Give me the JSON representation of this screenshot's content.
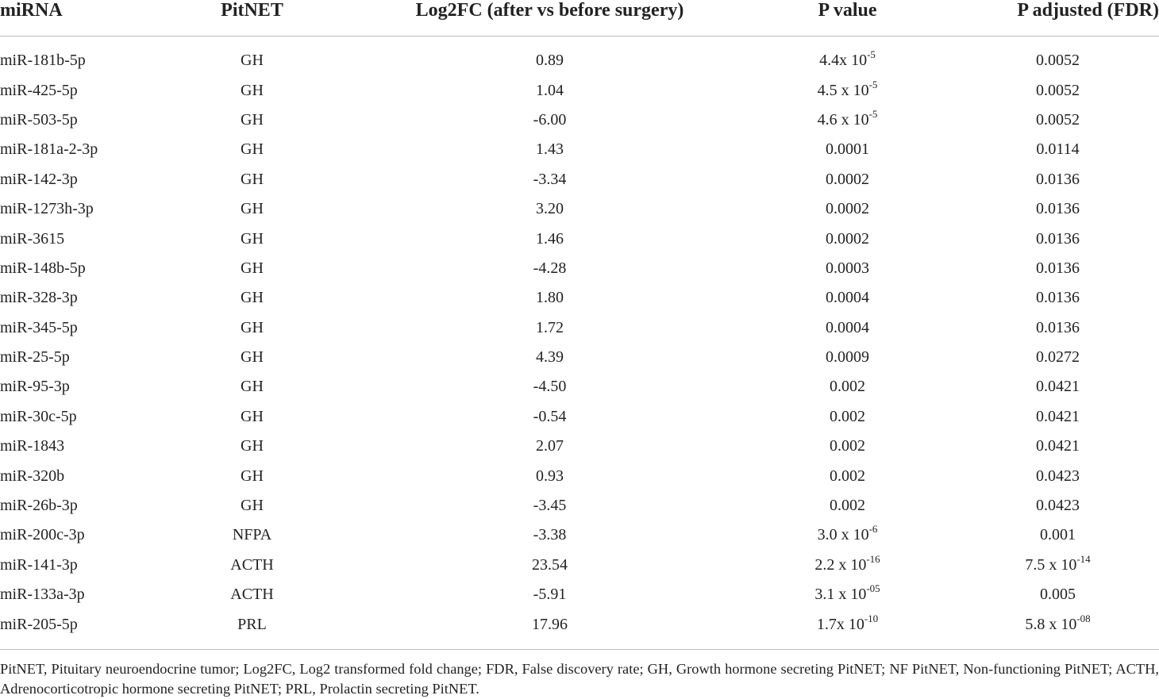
{
  "table": {
    "headers": [
      "miRNA",
      "PitNET",
      "Log2FC (after vs before surgery)",
      "P value",
      "P adjusted (FDR)"
    ],
    "rows": [
      {
        "mirna": "miR-181b-5p",
        "pitnet": "GH",
        "log2fc": "0.89",
        "p_value": {
          "base": "4.4x 10",
          "exp": "-5"
        },
        "p_adj": {
          "base": "0.0052",
          "exp": ""
        }
      },
      {
        "mirna": "miR-425-5p",
        "pitnet": "GH",
        "log2fc": "1.04",
        "p_value": {
          "base": "4.5 x 10",
          "exp": "-5"
        },
        "p_adj": {
          "base": "0.0052",
          "exp": ""
        }
      },
      {
        "mirna": "miR-503-5p",
        "pitnet": "GH",
        "log2fc": "-6.00",
        "p_value": {
          "base": "4.6 x 10",
          "exp": "-5"
        },
        "p_adj": {
          "base": "0.0052",
          "exp": ""
        }
      },
      {
        "mirna": "miR-181a-2-3p",
        "pitnet": "GH",
        "log2fc": "1.43",
        "p_value": {
          "base": "0.0001",
          "exp": ""
        },
        "p_adj": {
          "base": "0.0114",
          "exp": ""
        }
      },
      {
        "mirna": "miR-142-3p",
        "pitnet": "GH",
        "log2fc": "-3.34",
        "p_value": {
          "base": "0.0002",
          "exp": ""
        },
        "p_adj": {
          "base": "0.0136",
          "exp": ""
        }
      },
      {
        "mirna": "miR-1273h-3p",
        "pitnet": "GH",
        "log2fc": "3.20",
        "p_value": {
          "base": "0.0002",
          "exp": ""
        },
        "p_adj": {
          "base": "0.0136",
          "exp": ""
        }
      },
      {
        "mirna": "miR-3615",
        "pitnet": "GH",
        "log2fc": "1.46",
        "p_value": {
          "base": "0.0002",
          "exp": ""
        },
        "p_adj": {
          "base": "0.0136",
          "exp": ""
        }
      },
      {
        "mirna": "miR-148b-5p",
        "pitnet": "GH",
        "log2fc": "-4.28",
        "p_value": {
          "base": "0.0003",
          "exp": ""
        },
        "p_adj": {
          "base": "0.0136",
          "exp": ""
        }
      },
      {
        "mirna": "miR-328-3p",
        "pitnet": "GH",
        "log2fc": "1.80",
        "p_value": {
          "base": "0.0004",
          "exp": ""
        },
        "p_adj": {
          "base": "0.0136",
          "exp": ""
        }
      },
      {
        "mirna": "miR-345-5p",
        "pitnet": "GH",
        "log2fc": "1.72",
        "p_value": {
          "base": "0.0004",
          "exp": ""
        },
        "p_adj": {
          "base": "0.0136",
          "exp": ""
        }
      },
      {
        "mirna": "miR-25-5p",
        "pitnet": "GH",
        "log2fc": "4.39",
        "p_value": {
          "base": "0.0009",
          "exp": ""
        },
        "p_adj": {
          "base": "0.0272",
          "exp": ""
        }
      },
      {
        "mirna": "miR-95-3p",
        "pitnet": "GH",
        "log2fc": "-4.50",
        "p_value": {
          "base": "0.002",
          "exp": ""
        },
        "p_adj": {
          "base": "0.0421",
          "exp": ""
        }
      },
      {
        "mirna": "miR-30c-5p",
        "pitnet": "GH",
        "log2fc": "-0.54",
        "p_value": {
          "base": "0.002",
          "exp": ""
        },
        "p_adj": {
          "base": "0.0421",
          "exp": ""
        }
      },
      {
        "mirna": "miR-1843",
        "pitnet": "GH",
        "log2fc": "2.07",
        "p_value": {
          "base": "0.002",
          "exp": ""
        },
        "p_adj": {
          "base": "0.0421",
          "exp": ""
        }
      },
      {
        "mirna": "miR-320b",
        "pitnet": "GH",
        "log2fc": "0.93",
        "p_value": {
          "base": "0.002",
          "exp": ""
        },
        "p_adj": {
          "base": "0.0423",
          "exp": ""
        }
      },
      {
        "mirna": "miR-26b-3p",
        "pitnet": "GH",
        "log2fc": "-3.45",
        "p_value": {
          "base": "0.002",
          "exp": ""
        },
        "p_adj": {
          "base": "0.0423",
          "exp": ""
        }
      },
      {
        "mirna": "miR-200c-3p",
        "pitnet": "NFPA",
        "log2fc": "-3.38",
        "p_value": {
          "base": "3.0 x 10",
          "exp": "-6"
        },
        "p_adj": {
          "base": "0.001",
          "exp": ""
        }
      },
      {
        "mirna": "miR-141-3p",
        "pitnet": "ACTH",
        "log2fc": "23.54",
        "p_value": {
          "base": "2.2 x 10",
          "exp": "-16"
        },
        "p_adj": {
          "base": "7.5 x 10",
          "exp": "-14"
        }
      },
      {
        "mirna": "miR-133a-3p",
        "pitnet": "ACTH",
        "log2fc": "-5.91",
        "p_value": {
          "base": "3.1 x 10",
          "exp": "-05"
        },
        "p_adj": {
          "base": "0.005",
          "exp": ""
        }
      },
      {
        "mirna": "miR-205-5p",
        "pitnet": "PRL",
        "log2fc": "17.96",
        "p_value": {
          "base": "1.7x 10",
          "exp": "-10"
        },
        "p_adj": {
          "base": "5.8 x 10",
          "exp": "-08"
        }
      }
    ]
  },
  "footnote": "PitNET, Pituitary neuroendocrine tumor; Log2FC, Log2 transformed fold change; FDR, False discovery rate; GH, Growth hormone secreting PitNET; NF PitNET, Non-functioning PitNET; ACTH, Adrenocorticotropic hormone secreting PitNET; PRL, Prolactin secreting PitNET."
}
